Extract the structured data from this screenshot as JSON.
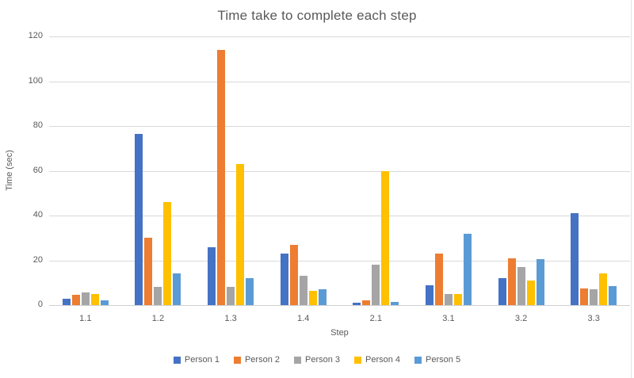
{
  "chart_data": {
    "type": "bar",
    "title": "Time take to complete each step",
    "xlabel": "Step",
    "ylabel": "Time (sec)",
    "categories": [
      "1.1",
      "1.2",
      "1.3",
      "1.4",
      "2.1",
      "3.1",
      "3.2",
      "3.3"
    ],
    "series": [
      {
        "name": "Person 1",
        "color": "#4472C4",
        "values": [
          3,
          76.5,
          26,
          23,
          1,
          9,
          12,
          41
        ]
      },
      {
        "name": "Person 2",
        "color": "#ED7D31",
        "values": [
          4.5,
          30,
          114,
          27,
          2,
          23,
          21,
          7.5
        ]
      },
      {
        "name": "Person 3",
        "color": "#A5A5A5",
        "values": [
          5.5,
          8,
          8,
          13,
          18,
          5,
          17,
          7
        ]
      },
      {
        "name": "Person 4",
        "color": "#FFC000",
        "values": [
          5,
          46,
          63,
          6.5,
          60,
          5,
          11,
          14
        ]
      },
      {
        "name": "Person 5",
        "color": "#5B9BD5",
        "values": [
          2,
          14,
          12,
          7,
          1.5,
          32,
          20.5,
          8.5
        ]
      }
    ],
    "ylim": [
      0,
      120
    ],
    "yticks": [
      0,
      20,
      40,
      60,
      80,
      100,
      120
    ],
    "grid": "horizontal",
    "grid_color": "#D9D9D9",
    "text_color": "#595959",
    "legend_position": "bottom",
    "background": "#FFFFFF"
  }
}
